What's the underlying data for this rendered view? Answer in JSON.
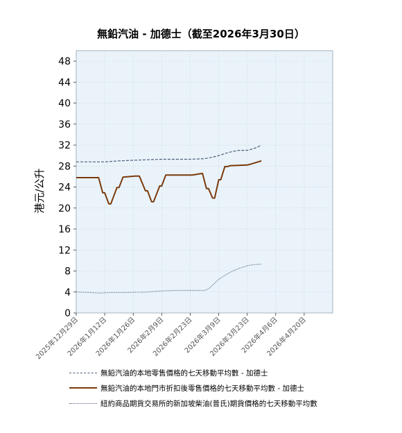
{
  "chart_data": {
    "type": "line",
    "title": "無鉛汽油 - 加德士（截至2026年3月30日）",
    "ylabel": "港元/公升",
    "xlabel": "",
    "ylim": [
      0,
      50
    ],
    "yticks": [
      0,
      4,
      8,
      12,
      16,
      20,
      24,
      28,
      32,
      36,
      40,
      44,
      48
    ],
    "xlim": [
      "2025-12-29",
      "2026-05-04"
    ],
    "xticks": [
      "2025年12月29日",
      "2026年1月12日",
      "2026年1月26日",
      "2026年2月9日",
      "2026年2月23日",
      "2026年3月9日",
      "2026年3月23日",
      "2026年4月6日",
      "2026年4月20日"
    ],
    "grid": true,
    "legend_position": "bottom",
    "colors": {
      "plot_background": "#eaf3f9",
      "grid": "#c9d6df",
      "series1": "#4a5d7a",
      "series2": "#7a3a0c",
      "series3": "#4a5d7a"
    },
    "series": [
      {
        "name": "無鉛汽油的本地零售價格的七天移動平均數 - 加德士",
        "style": "dashed",
        "x": [
          "2025-12-29",
          "2026-01-12",
          "2026-01-19",
          "2026-01-26",
          "2026-02-02",
          "2026-02-09",
          "2026-02-16",
          "2026-02-23",
          "2026-03-02",
          "2026-03-06",
          "2026-03-09",
          "2026-03-13",
          "2026-03-16",
          "2026-03-19",
          "2026-03-23",
          "2026-03-26",
          "2026-03-28",
          "2026-03-30"
        ],
        "values": [
          28.8,
          28.8,
          29.0,
          29.1,
          29.2,
          29.3,
          29.3,
          29.3,
          29.4,
          29.7,
          30.0,
          30.5,
          30.8,
          31.0,
          31.0,
          31.3,
          31.6,
          32.0
        ]
      },
      {
        "name": "無鉛汽油的本地門市折扣後零售價格的七天移動平均數 - 加德士",
        "style": "solid",
        "x": [
          "2025-12-29",
          "2026-01-09",
          "2026-01-11",
          "2026-01-12",
          "2026-01-14",
          "2026-01-15",
          "2026-01-18",
          "2026-01-19",
          "2026-01-21",
          "2026-01-27",
          "2026-01-29",
          "2026-02-01",
          "2026-02-02",
          "2026-02-04",
          "2026-02-05",
          "2026-02-08",
          "2026-02-09",
          "2026-02-11",
          "2026-02-24",
          "2026-03-01",
          "2026-03-03",
          "2026-03-04",
          "2026-03-06",
          "2026-03-07",
          "2026-03-09",
          "2026-03-10",
          "2026-03-12",
          "2026-03-13",
          "2026-03-15",
          "2026-03-16",
          "2026-03-23",
          "2026-03-25",
          "2026-03-30"
        ],
        "values": [
          25.8,
          25.8,
          22.9,
          22.9,
          20.8,
          20.8,
          23.9,
          23.9,
          25.9,
          26.1,
          26.1,
          23.3,
          23.3,
          21.2,
          21.2,
          24.2,
          24.2,
          26.3,
          26.3,
          26.6,
          23.7,
          23.7,
          21.9,
          21.9,
          25.4,
          25.4,
          27.9,
          27.9,
          28.1,
          28.1,
          28.2,
          28.4,
          29.0
        ]
      },
      {
        "name": "紐約商品期貨交易所的新加坡柴油(普氏)期貨價格的七天移動平均數",
        "style": "dotted",
        "x": [
          "2025-12-29",
          "2026-01-05",
          "2026-01-09",
          "2026-01-14",
          "2026-01-23",
          "2026-02-02",
          "2026-02-09",
          "2026-02-16",
          "2026-02-23",
          "2026-03-02",
          "2026-03-04",
          "2026-03-06",
          "2026-03-09",
          "2026-03-13",
          "2026-03-16",
          "2026-03-19",
          "2026-03-23",
          "2026-03-26",
          "2026-03-30"
        ],
        "values": [
          4.0,
          3.9,
          3.8,
          3.9,
          3.9,
          4.0,
          4.2,
          4.3,
          4.3,
          4.3,
          4.6,
          5.3,
          6.4,
          7.4,
          8.0,
          8.5,
          9.0,
          9.2,
          9.3
        ]
      }
    ]
  }
}
